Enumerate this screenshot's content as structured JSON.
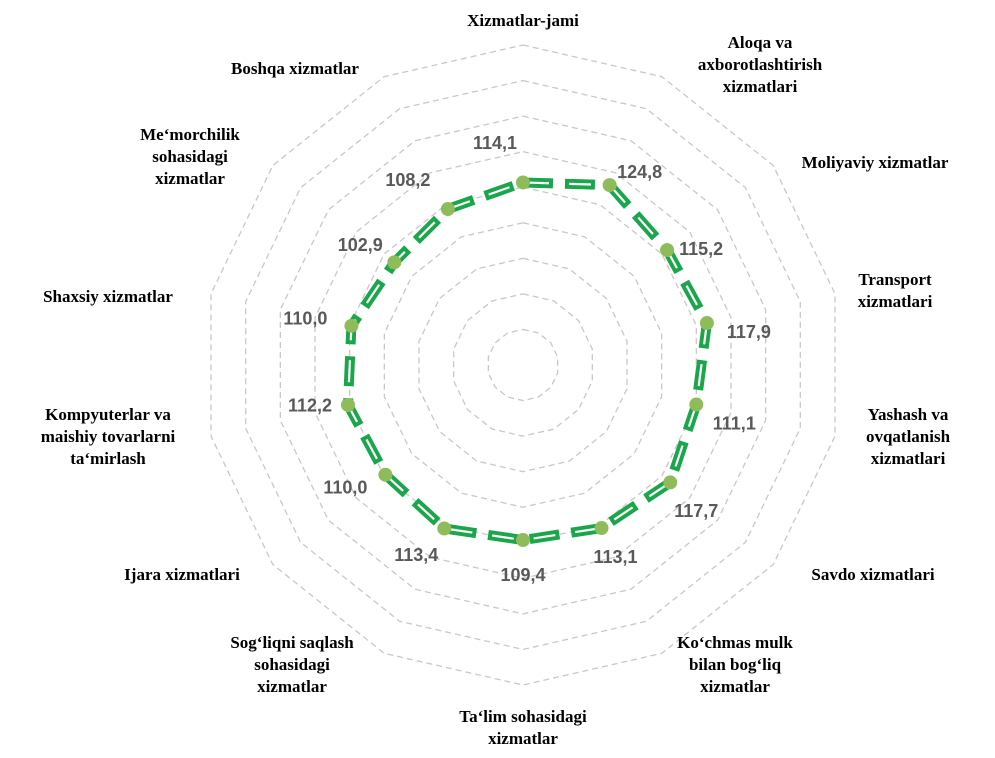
{
  "chart_data": {
    "type": "radar",
    "categories": [
      [
        "Xizmatlar-jami"
      ],
      [
        "Aloqa va",
        "axborotlashtirish",
        "xizmatlari"
      ],
      [
        "Moliyaviy xizmatlar"
      ],
      [
        "Transport",
        "xizmatlari"
      ],
      [
        "Yashash va",
        "ovqatlanish",
        "xizmatlari"
      ],
      [
        "Savdo xizmatlari"
      ],
      [
        "Ko‘chmas mulk",
        "bilan bog‘liq",
        "xizmatlar"
      ],
      [
        "Ta‘lim sohasidagi",
        "xizmatlar"
      ],
      [
        "Sog‘liqni saqlash",
        "sohasidagi",
        "xizmatlar"
      ],
      [
        "Ijara xizmatlari"
      ],
      [
        "Kompyuterlar va",
        "maishiy tovarlarni",
        "ta‘mirlash"
      ],
      [
        "Shaxsiy xizmatlar"
      ],
      [
        "Me‘morchilik",
        "sohasidagi",
        "xizmatlar"
      ],
      [
        "Boshqa xizmatlar"
      ]
    ],
    "series": [
      {
        "values": [
          114.1,
          124.8,
          115.2,
          117.9,
          111.1,
          117.7,
          113.1,
          109.4,
          113.4,
          110.0,
          112.2,
          110.0,
          102.9,
          108.2
        ],
        "labels": [
          "114,1",
          "124,8",
          "115,2",
          "117,9",
          "111,1",
          "117,7",
          "113,1",
          "109,4",
          "113,4",
          "110,0",
          "112,2",
          "110,0",
          "102,9",
          "108,2"
        ]
      }
    ],
    "grid": true,
    "colors": {
      "line": "#1aa64a",
      "line_dash": "#ffffff",
      "marker": "#8fbc5a",
      "grid": "#c8c8c8",
      "value_text": "#595959",
      "category_text": "#000000"
    }
  }
}
